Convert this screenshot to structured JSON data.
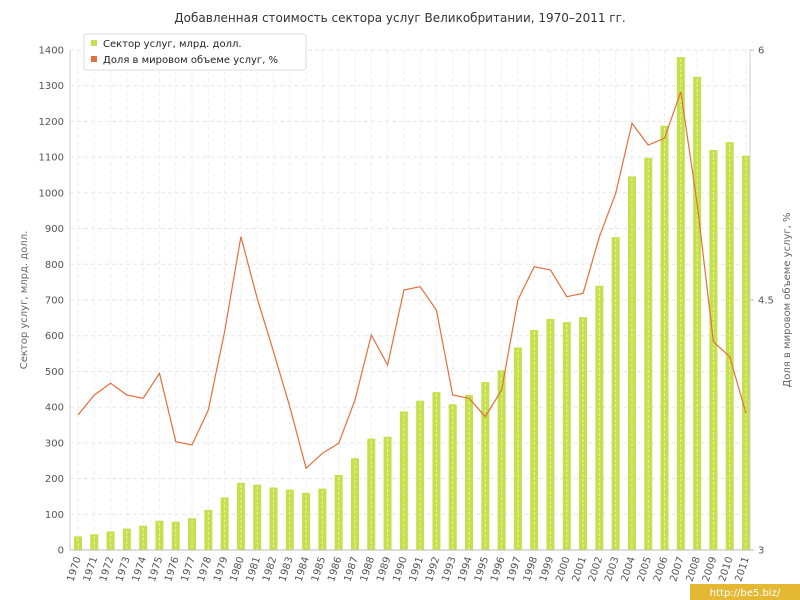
{
  "chart_data": {
    "type": "bar",
    "title": "Добавленная стоимость сектора услуг Великобритании, 1970–2011 гг.",
    "categories": [
      "1970",
      "1971",
      "1972",
      "1973",
      "1974",
      "1975",
      "1976",
      "1977",
      "1978",
      "1979",
      "1980",
      "1981",
      "1982",
      "1983",
      "1984",
      "1985",
      "1986",
      "1987",
      "1988",
      "1989",
      "1990",
      "1991",
      "1992",
      "1993",
      "1994",
      "1995",
      "1996",
      "1997",
      "1998",
      "1999",
      "2000",
      "2001",
      "2002",
      "2003",
      "2004",
      "2005",
      "2006",
      "2007",
      "2008",
      "2009",
      "2010",
      "2011"
    ],
    "series": [
      {
        "name": "Сектор услуг, млрд. долл.",
        "type": "bar",
        "axis": "left",
        "color": "#c5e04c",
        "values": [
          38,
          44,
          52,
          60,
          68,
          82,
          79,
          89,
          112,
          147,
          188,
          183,
          175,
          169,
          160,
          172,
          210,
          257,
          312,
          317,
          388,
          418,
          442,
          408,
          434,
          470,
          503,
          567,
          616,
          647,
          638,
          652,
          740,
          876,
          1046,
          1098,
          1188,
          1380,
          1325,
          1120,
          1142,
          1104
        ]
      },
      {
        "name": "Доля в мировом объеме услуг, %",
        "type": "line",
        "axis": "right",
        "color": "#e2703e",
        "values": [
          3.81,
          3.93,
          4.0,
          3.93,
          3.91,
          4.06,
          3.65,
          3.63,
          3.84,
          4.31,
          4.88,
          4.51,
          4.19,
          3.86,
          3.49,
          3.58,
          3.64,
          3.9,
          4.29,
          4.11,
          4.56,
          4.58,
          4.44,
          3.93,
          3.91,
          3.8,
          3.96,
          4.5,
          4.7,
          4.68,
          4.52,
          4.54,
          4.88,
          5.14,
          5.56,
          5.43,
          5.47,
          5.75,
          5.08,
          4.25,
          4.16,
          3.82
        ]
      }
    ],
    "ylabel": "Сектор услуг, млрд. долл.",
    "ylabel_right": "Доля в мировом объеме услуг, %",
    "ylim": [
      0,
      1400
    ],
    "yticks": [
      "0",
      "100",
      "200",
      "300",
      "400",
      "500",
      "600",
      "700",
      "800",
      "900",
      "1000",
      "1100",
      "1200",
      "1300",
      "1400"
    ],
    "ylim_right": [
      3,
      6
    ],
    "yticks_right": [
      "3",
      "4.5",
      "6"
    ],
    "grid": true,
    "legend_position": "top-left"
  },
  "watermark": "http://be5.biz/"
}
